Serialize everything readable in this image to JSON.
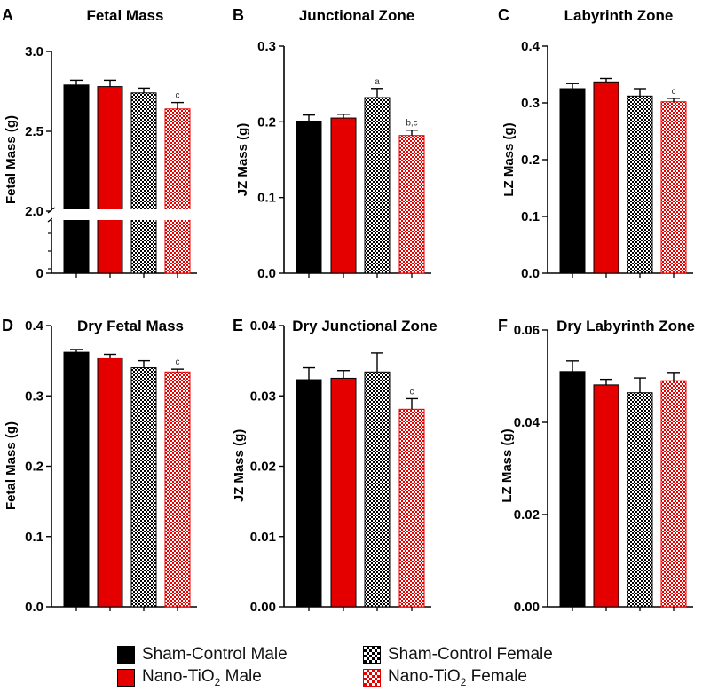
{
  "colors": {
    "sham_male": "#000000",
    "nano_male": "#e50000",
    "sham_female_pattern": "#000000",
    "nano_female_pattern": "#e50000"
  },
  "legend": {
    "sham_male": "Sham-Control Male",
    "nano_male_prefix": "Nano-TiO",
    "nano_male_sub": "2",
    "nano_male_suffix": " Male",
    "sham_female": "Sham-Control Female",
    "nano_female_prefix": "Nano-TiO",
    "nano_female_sub": "2",
    "nano_female_suffix": " Female"
  },
  "chart_data": [
    {
      "panel": "A",
      "type": "bar",
      "title": "Fetal Mass",
      "ylabel": "Fetal Mass (g)",
      "categories": [
        "Sham-Control Male",
        "Nano-TiO2 Male",
        "Sham-Control Female",
        "Nano-TiO2 Female"
      ],
      "values": [
        2.79,
        2.78,
        2.74,
        2.64
      ],
      "errors": [
        0.03,
        0.04,
        0.03,
        0.04
      ],
      "annotations": [
        "",
        "",
        "",
        "c"
      ],
      "axis_break": true,
      "lower_ticks": [
        "0"
      ],
      "upper_range": [
        2.0,
        3.0
      ],
      "ticks": [
        2.0,
        2.5,
        3.0
      ],
      "tick_labels": [
        "2.0",
        "2.5",
        "3.0"
      ]
    },
    {
      "panel": "B",
      "type": "bar",
      "title": "Junctional Zone",
      "ylabel": "JZ Mass (g)",
      "categories": [
        "Sham-Control Male",
        "Nano-TiO2 Male",
        "Sham-Control Female",
        "Nano-TiO2 Female"
      ],
      "values": [
        0.201,
        0.205,
        0.232,
        0.182
      ],
      "errors": [
        0.008,
        0.005,
        0.012,
        0.007
      ],
      "annotations": [
        "",
        "",
        "a",
        "b,c"
      ],
      "ylim": [
        0,
        0.3
      ],
      "ticks": [
        0,
        0.1,
        0.2,
        0.3
      ],
      "tick_labels": [
        "0.0",
        "0.1",
        "0.2",
        "0.3"
      ]
    },
    {
      "panel": "C",
      "type": "bar",
      "title": "Labyrinth Zone",
      "ylabel": "LZ Mass (g)",
      "categories": [
        "Sham-Control Male",
        "Nano-TiO2 Male",
        "Sham-Control Female",
        "Nano-TiO2 Female"
      ],
      "values": [
        0.325,
        0.337,
        0.312,
        0.302
      ],
      "errors": [
        0.009,
        0.006,
        0.013,
        0.006
      ],
      "annotations": [
        "",
        "",
        "",
        "c"
      ],
      "ylim": [
        0,
        0.4
      ],
      "ticks": [
        0,
        0.1,
        0.2,
        0.3,
        0.4
      ],
      "tick_labels": [
        "0.0",
        "0.1",
        "0.2",
        "0.3",
        "0.4"
      ]
    },
    {
      "panel": "D",
      "type": "bar",
      "title": "Dry Fetal Mass",
      "ylabel": "Fetal Mass  (g)",
      "categories": [
        "Sham-Control Male",
        "Nano-TiO2 Male",
        "Sham-Control Female",
        "Nano-TiO2 Female"
      ],
      "values": [
        0.362,
        0.354,
        0.34,
        0.334
      ],
      "errors": [
        0.004,
        0.005,
        0.01,
        0.004
      ],
      "annotations": [
        "",
        "",
        "",
        "c"
      ],
      "ylim": [
        0,
        0.4
      ],
      "ticks": [
        0,
        0.1,
        0.2,
        0.3,
        0.4
      ],
      "tick_labels": [
        "0.0",
        "0.1",
        "0.2",
        "0.3",
        "0.4"
      ]
    },
    {
      "panel": "E",
      "type": "bar",
      "title": "Dry Junctional Zone",
      "ylabel": "JZ Mass  (g)",
      "categories": [
        "Sham-Control Male",
        "Nano-TiO2 Male",
        "Sham-Control Female",
        "Nano-TiO2 Female"
      ],
      "values": [
        0.0323,
        0.0325,
        0.0334,
        0.0281
      ],
      "errors": [
        0.0017,
        0.0011,
        0.0027,
        0.0015
      ],
      "annotations": [
        "",
        "",
        "",
        "c"
      ],
      "ylim": [
        0,
        0.04
      ],
      "ticks": [
        0,
        0.01,
        0.02,
        0.03,
        0.04
      ],
      "tick_labels": [
        "0.00",
        "0.01",
        "0.02",
        "0.03",
        "0.04"
      ]
    },
    {
      "panel": "F",
      "type": "bar",
      "title": "Dry Labyrinth Zone",
      "ylabel": "LZ Mass  (g)",
      "categories": [
        "Sham-Control Male",
        "Nano-TiO2 Male",
        "Sham-Control Female",
        "Nano-TiO2 Female"
      ],
      "values": [
        0.051,
        0.0481,
        0.0464,
        0.049
      ],
      "errors": [
        0.0023,
        0.0012,
        0.0032,
        0.0018
      ],
      "annotations": [
        "",
        "",
        "",
        ""
      ],
      "ylim": [
        0,
        0.06
      ],
      "ticks": [
        0,
        0.02,
        0.04,
        0.06
      ],
      "tick_labels": [
        "0.00",
        "0.02",
        "0.04",
        "0.06"
      ]
    }
  ]
}
